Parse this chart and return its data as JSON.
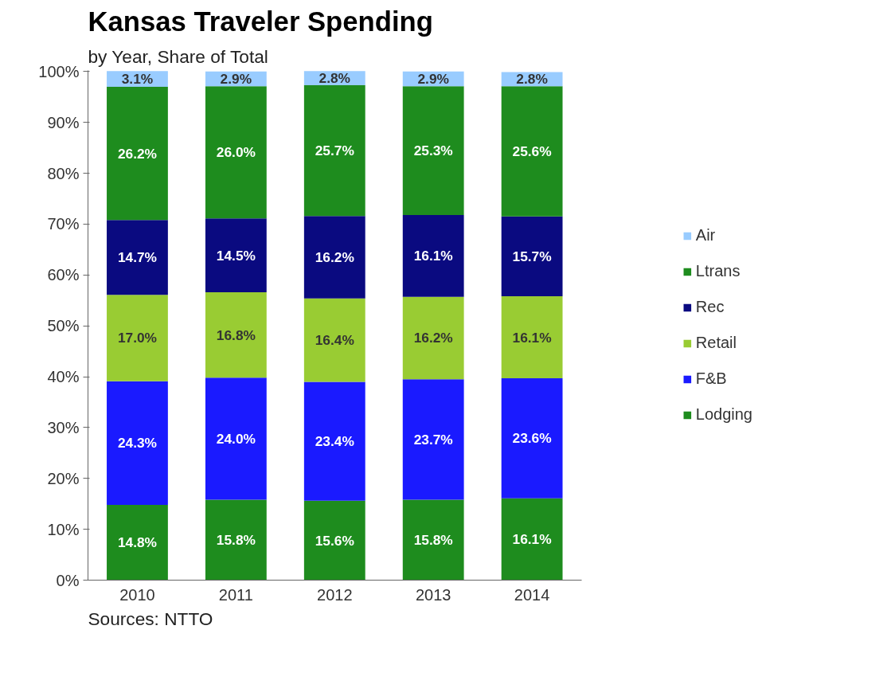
{
  "chart_data": {
    "type": "bar",
    "stacked": true,
    "title": "Kansas Traveler Spending",
    "subtitle": "by Year, Share of Total",
    "categories": [
      "2010",
      "2011",
      "2012",
      "2013",
      "2014"
    ],
    "series": [
      {
        "name": "Lodging",
        "color": "#1e8c1e",
        "values": [
          14.8,
          15.8,
          15.6,
          15.8,
          16.1
        ],
        "value_labels": [
          "14.8%",
          "15.8%",
          "15.6%",
          "15.8%",
          "16.1%"
        ]
      },
      {
        "name": "F&B",
        "color": "#1a1aff",
        "values": [
          24.3,
          24.0,
          23.4,
          23.7,
          23.6
        ],
        "value_labels": [
          "24.3%",
          "24.0%",
          "23.4%",
          "23.7%",
          "23.6%"
        ]
      },
      {
        "name": "Retail",
        "color": "#99cc33",
        "values": [
          17.0,
          16.8,
          16.4,
          16.2,
          16.1
        ],
        "value_labels": [
          "17.0%",
          "16.8%",
          "16.4%",
          "16.2%",
          "16.1%"
        ]
      },
      {
        "name": "Rec",
        "color": "#0a0a80",
        "values": [
          14.7,
          14.5,
          16.2,
          16.1,
          15.7
        ],
        "value_labels": [
          "14.7%",
          "14.5%",
          "16.2%",
          "16.1%",
          "15.7%"
        ]
      },
      {
        "name": "Ltrans",
        "color": "#1e8c1e",
        "values": [
          26.2,
          26.0,
          25.7,
          25.3,
          25.6
        ],
        "value_labels": [
          "26.2%",
          "26.0%",
          "25.7%",
          "25.3%",
          "25.6%"
        ]
      },
      {
        "name": "Air",
        "color": "#99ccff",
        "values": [
          3.1,
          2.9,
          2.8,
          2.9,
          2.8
        ],
        "value_labels": [
          "3.1%",
          "2.9%",
          "2.8%",
          "2.9%",
          "2.8%"
        ]
      }
    ],
    "ylim": [
      0,
      100.2
    ],
    "yticks": [
      {
        "value": 0,
        "label": "0%"
      },
      {
        "value": 10,
        "label": "10%"
      },
      {
        "value": 20,
        "label": "20%"
      },
      {
        "value": 30,
        "label": "30%"
      },
      {
        "value": 40,
        "label": "40%"
      },
      {
        "value": 50,
        "label": "50%"
      },
      {
        "value": 60,
        "label": "60%"
      },
      {
        "value": 70,
        "label": "70%"
      },
      {
        "value": 80,
        "label": "80%"
      },
      {
        "value": 90,
        "label": "90%"
      },
      {
        "value": 100,
        "label": "100%"
      }
    ],
    "grid": false,
    "legend": "right",
    "annotations": [
      "Sources: NTTO"
    ]
  }
}
